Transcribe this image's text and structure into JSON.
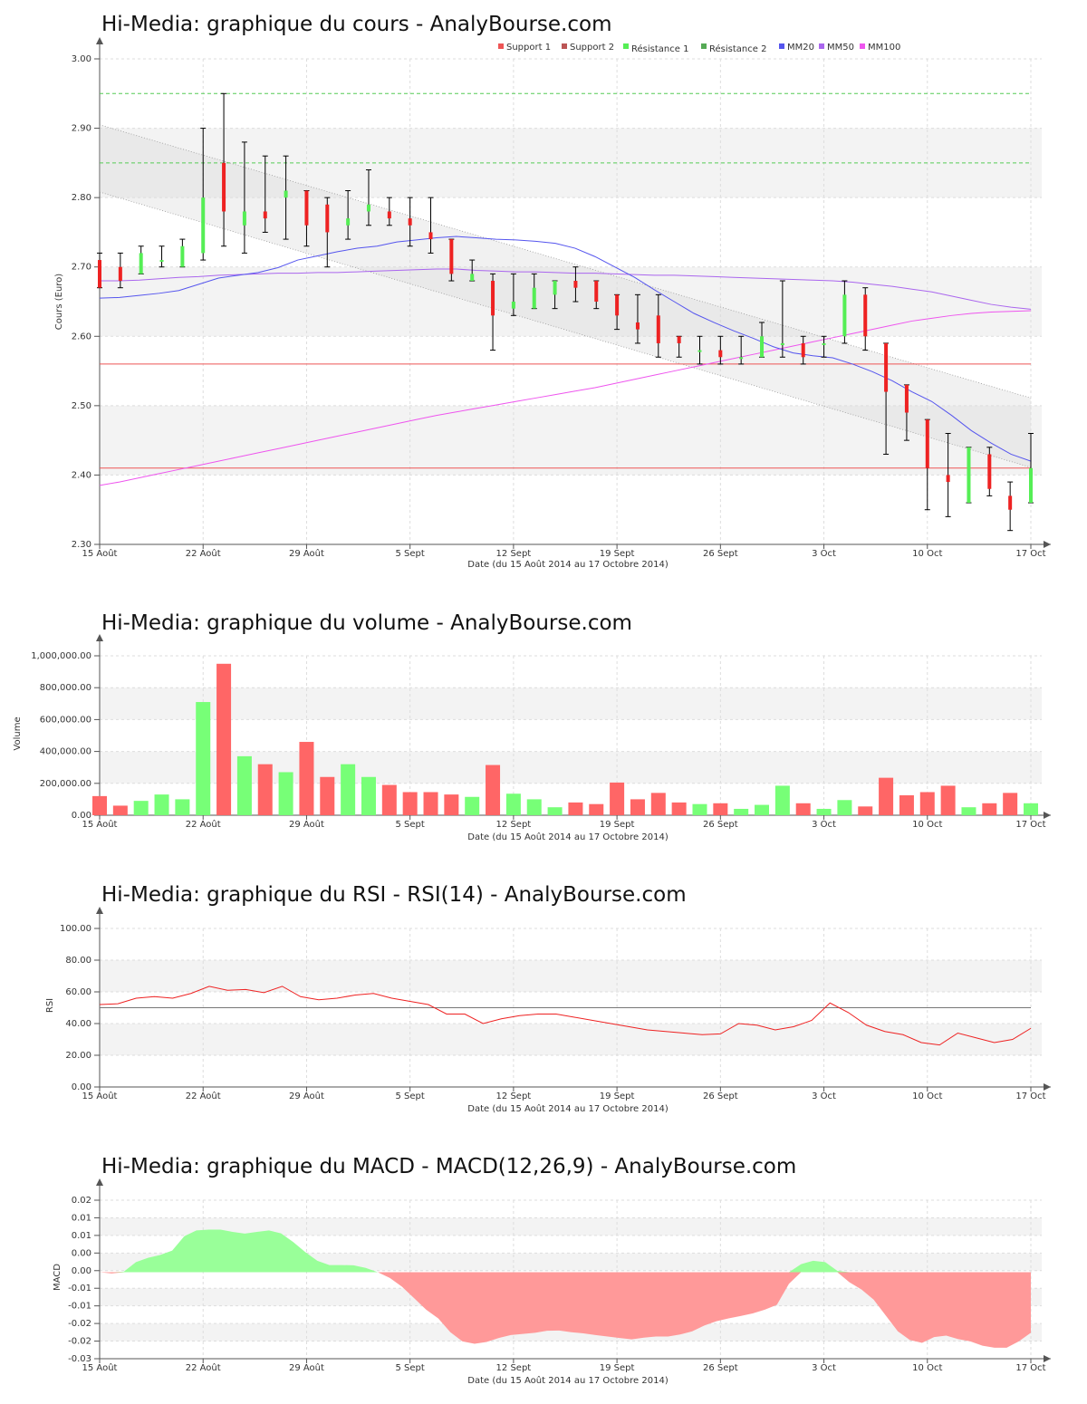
{
  "x_labels": [
    "15 Août",
    "22 Août",
    "29 Août",
    "5 Sept",
    "12 Sept",
    "19 Sept",
    "26 Sept",
    "3 Oct",
    "10 Oct",
    "17 Oct"
  ],
  "x_axis_title": "Date (du 15 Août 2014 au 17 Octobre 2014)",
  "colors": {
    "up": "#55ee55",
    "down": "#ee2222",
    "vol_up": "#77ff77",
    "vol_down": "#ff6666",
    "mm20": "#5555ee",
    "mm50": "#aa66ee",
    "mm100": "#ee55ee",
    "support": "#ee5555",
    "resistance": "#55cc55"
  },
  "chart_data": [
    {
      "id": "cours",
      "type": "candlestick",
      "title": "Hi-Media: graphique du cours - AnalyBourse.com",
      "ylabel": "Cours (Euro)",
      "ylim": [
        2.3,
        3.0
      ],
      "yticks": [
        "2.30",
        "2.40",
        "2.50",
        "2.60",
        "2.70",
        "2.80",
        "2.90",
        "3.00"
      ],
      "legend": [
        "Support 1",
        "Support 2",
        "Résistance 1",
        "Résistance 2",
        "MM20",
        "MM50",
        "MM100"
      ],
      "support_1": 2.56,
      "support_2": 2.41,
      "resistance_1": 2.95,
      "resistance_2": 2.85,
      "candles": [
        [
          2.71,
          2.72,
          2.67,
          2.67
        ],
        [
          2.7,
          2.72,
          2.67,
          2.68
        ],
        [
          2.69,
          2.73,
          2.69,
          2.72
        ],
        [
          2.71,
          2.73,
          2.7,
          2.71
        ],
        [
          2.7,
          2.74,
          2.7,
          2.73
        ],
        [
          2.72,
          2.9,
          2.71,
          2.8
        ],
        [
          2.85,
          2.95,
          2.73,
          2.78
        ],
        [
          2.76,
          2.88,
          2.72,
          2.78
        ],
        [
          2.78,
          2.86,
          2.75,
          2.77
        ],
        [
          2.8,
          2.86,
          2.74,
          2.81
        ],
        [
          2.81,
          2.81,
          2.73,
          2.76
        ],
        [
          2.79,
          2.8,
          2.7,
          2.75
        ],
        [
          2.76,
          2.81,
          2.74,
          2.77
        ],
        [
          2.78,
          2.84,
          2.76,
          2.79
        ],
        [
          2.78,
          2.8,
          2.76,
          2.77
        ],
        [
          2.77,
          2.8,
          2.73,
          2.76
        ],
        [
          2.75,
          2.8,
          2.72,
          2.74
        ],
        [
          2.74,
          2.74,
          2.68,
          2.69
        ],
        [
          2.68,
          2.71,
          2.68,
          2.69
        ],
        [
          2.68,
          2.69,
          2.58,
          2.63
        ],
        [
          2.64,
          2.69,
          2.63,
          2.65
        ],
        [
          2.64,
          2.69,
          2.64,
          2.67
        ],
        [
          2.66,
          2.68,
          2.64,
          2.68
        ],
        [
          2.68,
          2.7,
          2.65,
          2.67
        ],
        [
          2.68,
          2.68,
          2.64,
          2.65
        ],
        [
          2.66,
          2.66,
          2.61,
          2.63
        ],
        [
          2.62,
          2.66,
          2.59,
          2.61
        ],
        [
          2.63,
          2.66,
          2.57,
          2.59
        ],
        [
          2.6,
          2.6,
          2.57,
          2.59
        ],
        [
          2.58,
          2.6,
          2.56,
          2.58
        ],
        [
          2.58,
          2.6,
          2.56,
          2.57
        ],
        [
          2.57,
          2.6,
          2.56,
          2.57
        ],
        [
          2.57,
          2.62,
          2.57,
          2.6
        ],
        [
          2.59,
          2.68,
          2.57,
          2.59
        ],
        [
          2.59,
          2.6,
          2.56,
          2.57
        ],
        [
          2.59,
          2.6,
          2.57,
          2.59
        ],
        [
          2.6,
          2.68,
          2.59,
          2.66
        ],
        [
          2.66,
          2.67,
          2.58,
          2.6
        ],
        [
          2.59,
          2.59,
          2.43,
          2.52
        ],
        [
          2.53,
          2.53,
          2.45,
          2.49
        ],
        [
          2.48,
          2.48,
          2.35,
          2.41
        ],
        [
          2.4,
          2.46,
          2.34,
          2.39
        ],
        [
          2.36,
          2.44,
          2.36,
          2.44
        ],
        [
          2.43,
          2.44,
          2.37,
          2.38
        ],
        [
          2.37,
          2.39,
          2.32,
          2.35
        ],
        [
          2.36,
          2.46,
          2.36,
          2.41
        ]
      ],
      "mm20": [
        2.655,
        2.656,
        2.659,
        2.662,
        2.666,
        2.675,
        2.684,
        2.688,
        2.692,
        2.699,
        2.71,
        2.716,
        2.722,
        2.727,
        2.73,
        2.736,
        2.739,
        2.742,
        2.744,
        2.742,
        2.74,
        2.739,
        2.737,
        2.734,
        2.727,
        2.715,
        2.7,
        2.685,
        2.667,
        2.65,
        2.633,
        2.62,
        2.608,
        2.597,
        2.585,
        2.576,
        2.572,
        2.569,
        2.56,
        2.549,
        2.536,
        2.52,
        2.506,
        2.486,
        2.464,
        2.446,
        2.43,
        2.42
      ],
      "mm50": [
        2.68,
        2.68,
        2.681,
        2.683,
        2.685,
        2.686,
        2.688,
        2.689,
        2.69,
        2.691,
        2.691,
        2.692,
        2.692,
        2.693,
        2.694,
        2.695,
        2.696,
        2.697,
        2.697,
        2.695,
        2.694,
        2.693,
        2.693,
        2.692,
        2.691,
        2.691,
        2.69,
        2.689,
        2.688,
        2.688,
        2.687,
        2.686,
        2.685,
        2.684,
        2.683,
        2.682,
        2.681,
        2.68,
        2.678,
        2.675,
        2.672,
        2.668,
        2.664,
        2.658,
        2.652,
        2.646,
        2.642,
        2.639
      ],
      "mm100": [
        2.385,
        2.39,
        2.396,
        2.402,
        2.408,
        2.414,
        2.42,
        2.426,
        2.432,
        2.438,
        2.444,
        2.45,
        2.456,
        2.462,
        2.468,
        2.474,
        2.48,
        2.486,
        2.491,
        2.496,
        2.501,
        2.506,
        2.511,
        2.516,
        2.521,
        2.526,
        2.532,
        2.538,
        2.544,
        2.55,
        2.556,
        2.562,
        2.568,
        2.574,
        2.58,
        2.586,
        2.592,
        2.598,
        2.604,
        2.61,
        2.616,
        2.622,
        2.626,
        2.63,
        2.633,
        2.635,
        2.636,
        2.637
      ]
    },
    {
      "id": "volume",
      "type": "bar",
      "title": "Hi-Media: graphique du volume - AnalyBourse.com",
      "ylabel": "Volume",
      "ylim": [
        0,
        1000000
      ],
      "yticks": [
        "0.00",
        "200,000.00",
        "400,000.00",
        "600,000.00",
        "800,000.00",
        "1,000,000.00"
      ],
      "values": [
        120000,
        60000,
        90000,
        130000,
        100000,
        710000,
        950000,
        370000,
        320000,
        270000,
        460000,
        240000,
        320000,
        240000,
        190000,
        145000,
        145000,
        130000,
        115000,
        315000,
        135000,
        100000,
        50000,
        80000,
        70000,
        205000,
        100000,
        140000,
        80000,
        70000,
        75000,
        40000,
        65000,
        185000,
        75000,
        40000,
        95000,
        55000,
        235000,
        125000,
        145000,
        185000,
        50000,
        75000,
        140000,
        75000
      ],
      "direction": [
        "down",
        "down",
        "up",
        "up",
        "up",
        "up",
        "down",
        "up",
        "down",
        "up",
        "down",
        "down",
        "up",
        "up",
        "down",
        "down",
        "down",
        "down",
        "up",
        "down",
        "up",
        "up",
        "up",
        "down",
        "down",
        "down",
        "down",
        "down",
        "down",
        "up",
        "down",
        "up",
        "up",
        "up",
        "down",
        "up",
        "up",
        "down",
        "down",
        "down",
        "down",
        "down",
        "up",
        "down",
        "down",
        "up"
      ]
    },
    {
      "id": "rsi",
      "type": "line",
      "title": "Hi-Media: graphique du RSI - RSI(14) - AnalyBourse.com",
      "ylabel": "RSI",
      "ylim": [
        0,
        100
      ],
      "yticks": [
        "0.00",
        "20.00",
        "40.00",
        "60.00",
        "80.00",
        "100.00"
      ],
      "reference": 50,
      "values": [
        52,
        52.5,
        56,
        57,
        56,
        59,
        63.5,
        61,
        61.5,
        59.5,
        63.5,
        57,
        55,
        56,
        58,
        59,
        56,
        54,
        52,
        46,
        46,
        40,
        43,
        45,
        46,
        46,
        44,
        42,
        40,
        38,
        36,
        35,
        34,
        33,
        33.5,
        40,
        39,
        36,
        38,
        42,
        53,
        47,
        39,
        35,
        33,
        28,
        26.5,
        34,
        31,
        28,
        30,
        37
      ]
    },
    {
      "id": "macd",
      "type": "area",
      "title": "Hi-Media: graphique du MACD - MACD(12,26,9) - AnalyBourse.com",
      "ylabel": "MACD",
      "ylim": [
        -0.03,
        0.025
      ],
      "yticks": [
        "-0.03",
        "-0.02",
        "-0.02",
        "-0.01",
        "-0.01",
        "0.00",
        "0.00",
        "0.01",
        "0.01",
        "0.02"
      ],
      "values": [
        0,
        -0.0004,
        0.0002,
        0.0035,
        0.005,
        0.006,
        0.0075,
        0.0125,
        0.0145,
        0.0148,
        0.0148,
        0.014,
        0.0134,
        0.014,
        0.0145,
        0.0135,
        0.0105,
        0.007,
        0.004,
        0.0025,
        0.0025,
        0.0024,
        0.0015,
        0,
        -0.002,
        -0.005,
        -0.009,
        -0.013,
        -0.016,
        -0.0208,
        -0.024,
        -0.0248,
        -0.0242,
        -0.0228,
        -0.0218,
        -0.0214,
        -0.021,
        -0.0203,
        -0.0202,
        -0.0208,
        -0.0212,
        -0.0218,
        -0.0223,
        -0.0228,
        -0.0233,
        -0.0227,
        -0.0223,
        -0.0223,
        -0.0216,
        -0.0205,
        -0.0185,
        -0.017,
        -0.016,
        -0.0152,
        -0.0143,
        -0.013,
        -0.0113,
        -0.004,
        0.0028,
        0.004,
        0.0035,
        0.0005,
        -0.0035,
        -0.006,
        -0.0095,
        -0.015,
        -0.0205,
        -0.0235,
        -0.0245,
        -0.0225,
        -0.022,
        -0.0232,
        -0.024,
        -0.0255,
        -0.0262,
        -0.0262,
        -0.024,
        -0.021
      ],
      "positive_color": "#99ff99",
      "negative_color": "#ff9999"
    }
  ]
}
